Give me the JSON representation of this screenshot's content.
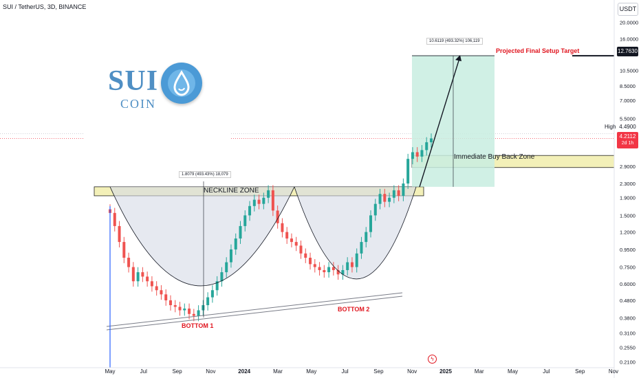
{
  "header": {
    "title": "SUI / TetherUS, 3D, BINANCE"
  },
  "price_axis": {
    "unit": "USDT"
  },
  "logo": {
    "word": "SUI",
    "sub": "COIN"
  },
  "annotations": {
    "neckline_zone": "NECKLINE ZONE",
    "buy_back_zone": "Immediate Buy Back Zone",
    "target": "Projected Final Setup Target",
    "bottom1": "BOTTOM 1",
    "bottom2": "BOTTOM 2",
    "measure1": "1.8079 (493.43%) 18,079",
    "measure2": "10.6119 (493.32%) 106,119",
    "high_label": "High"
  },
  "price_tags": {
    "target": "12.7630",
    "high": "4.4900",
    "current": "4.2112",
    "countdown": "2d 1h"
  },
  "colors": {
    "up": "#26a69a",
    "down": "#ef5350",
    "neckline_fill": "#f3f0b8",
    "target_box": "#c8ede0",
    "annotation_red": "#e0141e"
  },
  "chart_data": {
    "type": "candlestick",
    "title": "SUI / TetherUS, 3D, BINANCE",
    "x_ticks": [
      "May",
      "Jul",
      "Sep",
      "Nov",
      "2024",
      "Mar",
      "May",
      "Jul",
      "Sep",
      "Nov",
      "2025",
      "Mar",
      "May",
      "Jul",
      "Sep",
      "Nov"
    ],
    "y_ticks": [
      "20.0000",
      "16.0000",
      "10.5000",
      "8.5000",
      "7.0000",
      "5.5000",
      "4.4900",
      "2.9000",
      "2.3000",
      "1.9000",
      "1.5000",
      "1.2000",
      "0.9500",
      "0.7500",
      "0.6000",
      "0.4800",
      "0.3800",
      "0.3100",
      "0.2550",
      "0.2100"
    ],
    "y_scale": "log",
    "ylim": [
      0.2,
      22
    ],
    "price_path": [
      1.55,
      1.3,
      1.05,
      0.85,
      0.75,
      0.62,
      0.7,
      0.66,
      0.62,
      0.58,
      0.55,
      0.52,
      0.48,
      0.45,
      0.44,
      0.42,
      0.43,
      0.4,
      0.39,
      0.42,
      0.45,
      0.5,
      0.55,
      0.62,
      0.7,
      0.8,
      0.95,
      1.1,
      1.3,
      1.5,
      1.7,
      1.85,
      1.75,
      1.9,
      2.1,
      1.6,
      1.35,
      1.2,
      1.1,
      1.05,
      1.0,
      0.9,
      0.85,
      0.78,
      0.75,
      0.72,
      0.7,
      0.75,
      0.72,
      0.68,
      0.72,
      0.8,
      0.75,
      0.9,
      1.05,
      1.2,
      1.5,
      1.75,
      2.0,
      1.8,
      1.9,
      2.1,
      1.95,
      2.3,
      3.2,
      3.5,
      3.3,
      3.6,
      4.0,
      4.21
    ],
    "levels": {
      "neckline_zone": [
        1.95,
        2.2
      ],
      "buy_back_zone": [
        2.85,
        3.35
      ],
      "target": 12.763,
      "high": 4.49,
      "current": 4.2112
    }
  }
}
